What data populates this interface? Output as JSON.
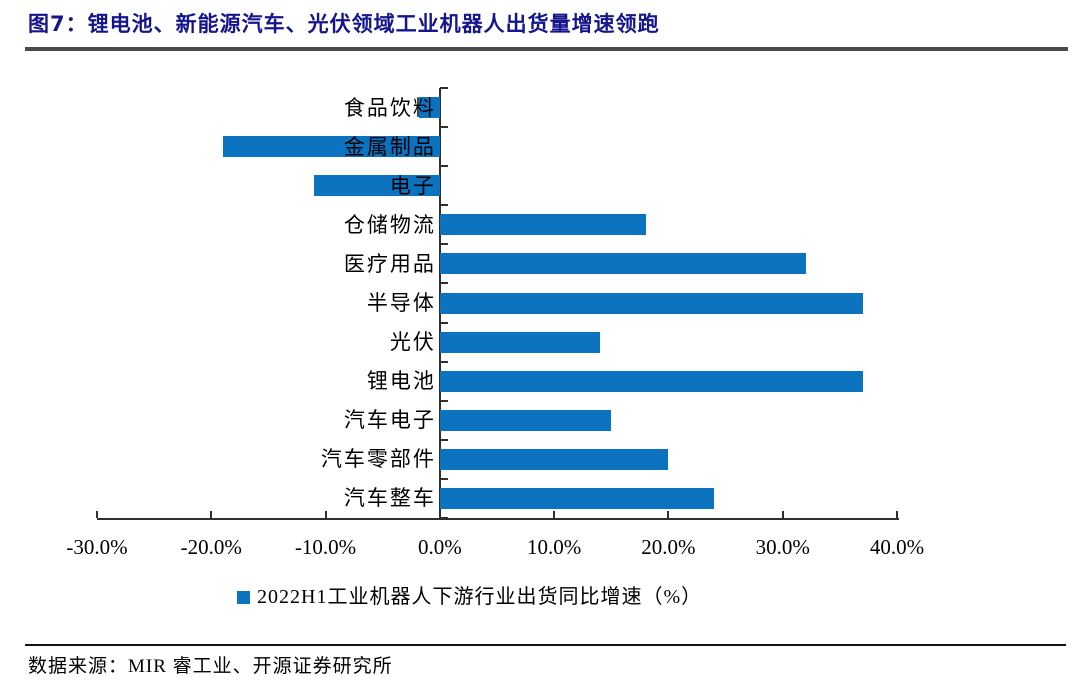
{
  "figure": {
    "title": "图7：锂电池、新能源汽车、光伏领域工业机器人出货量增速领跑",
    "source": "数据来源：MIR 睿工业、开源证券研究所"
  },
  "chart_data": {
    "type": "bar",
    "orientation": "horizontal",
    "title": "",
    "xlabel": "",
    "ylabel": "",
    "categories": [
      "食品饮料",
      "金属制品",
      "电子",
      "仓储物流",
      "医疗用品",
      "半导体",
      "光伏",
      "锂电池",
      "汽车电子",
      "汽车零部件",
      "汽车整车"
    ],
    "values": [
      -1.8,
      -19,
      -11,
      18,
      32,
      37,
      14,
      37,
      15,
      20,
      24
    ],
    "unit": "%",
    "legend": "2022H1工业机器人下游行业出货同比增速（%）",
    "legend_position": "bottom",
    "xlim": [
      -30,
      40
    ],
    "x_tick_values": [
      -30,
      -20,
      -10,
      0,
      10,
      20,
      30,
      40
    ],
    "x_tick_labels": [
      "-30.0%",
      "-20.0%",
      "-10.0%",
      "0.0%",
      "10.0%",
      "20.0%",
      "30.0%",
      "40.0%"
    ],
    "grid": false,
    "bar_color": "#0b73c0"
  },
  "colors": {
    "title_text": "#15158d",
    "title_rule": "#4a4a4a",
    "axis": "#2f2f2f",
    "bar": "#0b73c0",
    "footer_rule": "#111111",
    "text": "#000000"
  }
}
